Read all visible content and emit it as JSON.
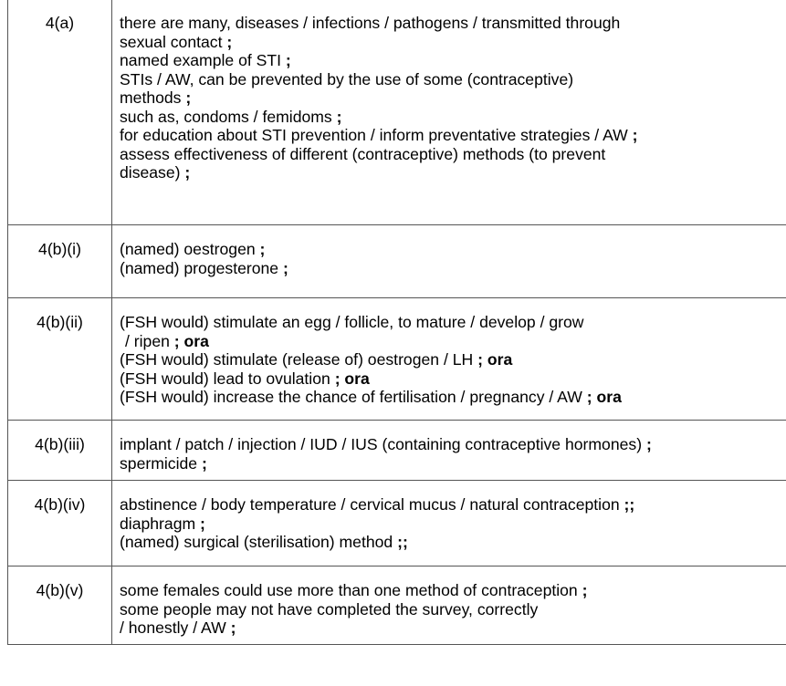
{
  "rows": [
    {
      "question": "4(a)",
      "lines": [
        {
          "text": "there are many, diseases / infections / pathogens / transmitted through",
          "mark": ""
        },
        {
          "text": "sexual contact",
          "mark": ";"
        },
        {
          "text": "named example of STI",
          "mark": ";"
        },
        {
          "text": "STIs / AW, can be prevented by the use of some (contraceptive)",
          "mark": ""
        },
        {
          "text": "methods",
          "mark": ";"
        },
        {
          "text": "such as, condoms / femidoms",
          "mark": ";"
        },
        {
          "text": "for education about STI prevention / inform preventative strategies / AW",
          "mark": ";"
        },
        {
          "text": "assess effectiveness of different (contraceptive) methods (to prevent",
          "mark": ""
        },
        {
          "text": "disease)",
          "mark": ";"
        }
      ]
    },
    {
      "question": "4(b)(i)",
      "lines": [
        {
          "text": "(named) oestrogen",
          "mark": ";"
        },
        {
          "text": "(named) progesterone",
          "mark": ";"
        }
      ]
    },
    {
      "question": "4(b)(ii)",
      "lines": [
        {
          "text": "(FSH would) stimulate an egg / follicle, to mature / develop / grow",
          "mark": ""
        },
        {
          "text": "/ ripen",
          "mark": "; ora",
          "indent": true
        },
        {
          "text": "(FSH would) stimulate (release of) oestrogen / LH",
          "mark": "; ora"
        },
        {
          "text": "(FSH would) lead to ovulation",
          "mark": "; ora"
        },
        {
          "text": "(FSH would) increase the chance of fertilisation / pregnancy / AW",
          "mark": "; ora"
        }
      ]
    },
    {
      "question": "4(b)(iii)",
      "lines": [
        {
          "text": "implant / patch / injection / IUD / IUS (containing contraceptive hormones)",
          "mark": ";"
        },
        {
          "text": "spermicide",
          "mark": ";"
        }
      ]
    },
    {
      "question": "4(b)(iv)",
      "lines": [
        {
          "text": "abstinence / body temperature / cervical mucus / natural contraception",
          "mark": ";;"
        },
        {
          "text": "diaphragm",
          "mark": ";"
        },
        {
          "text": "(named) surgical (sterilisation) method",
          "mark": ";;"
        }
      ]
    },
    {
      "question": "4(b)(v)",
      "lines": [
        {
          "text": "some females could use more than one method of contraception",
          "mark": ";"
        },
        {
          "text": "some people may not have completed the survey, correctly",
          "mark": ""
        },
        {
          "text": "/ honestly / AW",
          "mark": ";"
        }
      ]
    }
  ]
}
